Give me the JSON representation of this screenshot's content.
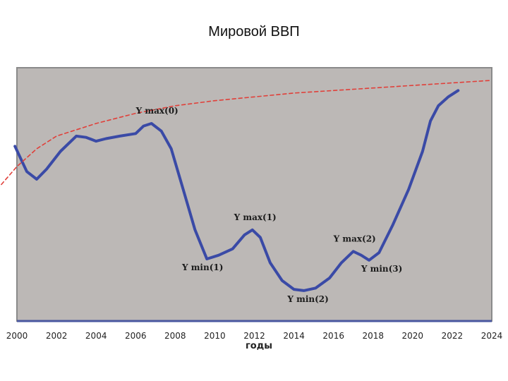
{
  "chart_data": {
    "type": "line",
    "title": "Мировой ВВП",
    "xlabel": "годы",
    "ylabel": "",
    "xlim": [
      2000,
      2024
    ],
    "x_ticks": [
      "2000",
      "2002",
      "2004",
      "2006",
      "2008",
      "2010",
      "2012",
      "2014",
      "2016",
      "2018",
      "2020",
      "2022",
      "2024"
    ],
    "grid": false,
    "legend": "none",
    "series": [
      {
        "name": "",
        "style": "solid",
        "color": "#3a4aa6",
        "points": [
          [
            1999.9,
            6.9
          ],
          [
            2000.5,
            5.9
          ],
          [
            2001.0,
            5.6
          ],
          [
            2001.5,
            6.0
          ],
          [
            2002.2,
            6.7
          ],
          [
            2003.0,
            7.3
          ],
          [
            2003.5,
            7.25
          ],
          [
            2004.0,
            7.1
          ],
          [
            2004.5,
            7.2
          ],
          [
            2005.2,
            7.3
          ],
          [
            2006.0,
            7.4
          ],
          [
            2006.4,
            7.7
          ],
          [
            2006.8,
            7.8
          ],
          [
            2007.3,
            7.5
          ],
          [
            2007.8,
            6.8
          ],
          [
            2008.4,
            5.2
          ],
          [
            2009.0,
            3.6
          ],
          [
            2009.6,
            2.45
          ],
          [
            2010.2,
            2.6
          ],
          [
            2010.9,
            2.85
          ],
          [
            2011.5,
            3.4
          ],
          [
            2011.9,
            3.6
          ],
          [
            2012.3,
            3.3
          ],
          [
            2012.8,
            2.3
          ],
          [
            2013.4,
            1.6
          ],
          [
            2014.0,
            1.25
          ],
          [
            2014.5,
            1.2
          ],
          [
            2015.1,
            1.3
          ],
          [
            2015.8,
            1.7
          ],
          [
            2016.4,
            2.3
          ],
          [
            2017.0,
            2.75
          ],
          [
            2017.4,
            2.6
          ],
          [
            2017.8,
            2.4
          ],
          [
            2018.3,
            2.7
          ],
          [
            2019.0,
            3.8
          ],
          [
            2019.8,
            5.2
          ],
          [
            2020.5,
            6.7
          ],
          [
            2020.9,
            7.9
          ],
          [
            2021.3,
            8.5
          ],
          [
            2021.8,
            8.85
          ],
          [
            2022.3,
            9.1
          ]
        ]
      },
      {
        "name": "",
        "style": "dashed",
        "color": "#e0403a",
        "points": [
          [
            1999.0,
            5.2
          ],
          [
            2000.0,
            6.1
          ],
          [
            2001.0,
            6.8
          ],
          [
            2002.0,
            7.3
          ],
          [
            2004.0,
            7.8
          ],
          [
            2006.0,
            8.2
          ],
          [
            2008.0,
            8.5
          ],
          [
            2010.0,
            8.7
          ],
          [
            2012.0,
            8.85
          ],
          [
            2014.0,
            9.0
          ],
          [
            2016.0,
            9.1
          ],
          [
            2018.0,
            9.2
          ],
          [
            2020.0,
            9.3
          ],
          [
            2022.0,
            9.4
          ],
          [
            2024.0,
            9.5
          ]
        ]
      }
    ],
    "annotations": [
      {
        "text": "Y max(0)",
        "x": 2006.8,
        "y": 7.8
      },
      {
        "text": "Y max(1)",
        "x": 2011.9,
        "y": 3.6
      },
      {
        "text": "Y min(1)",
        "x": 2009.6,
        "y": 2.45
      },
      {
        "text": "Y min(2)",
        "x": 2014.5,
        "y": 1.2
      },
      {
        "text": "Y max(2)",
        "x": 2017.0,
        "y": 2.75
      },
      {
        "text": "Y min(3)",
        "x": 2017.8,
        "y": 2.4
      }
    ],
    "colors": {
      "plot_background": "#bcb8b6",
      "plot_border": "#8a8a8a",
      "baseline": "#4a57a0"
    }
  }
}
